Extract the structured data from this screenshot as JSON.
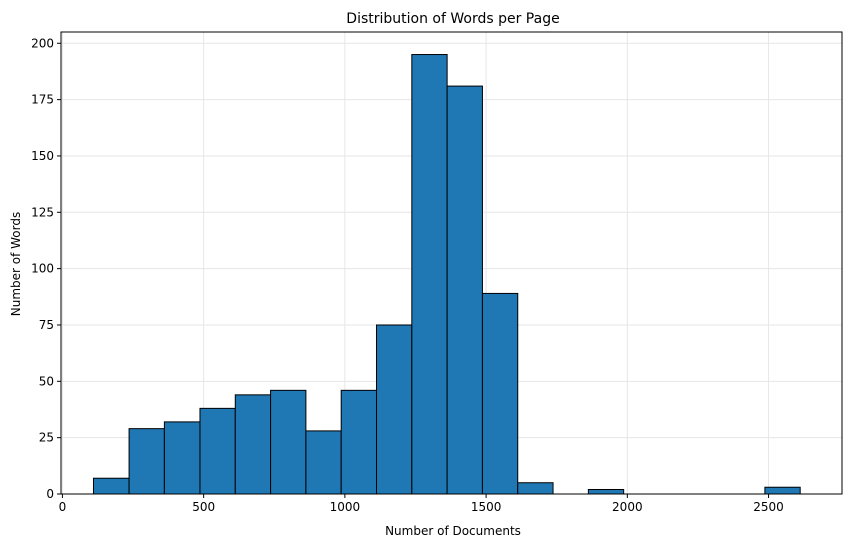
{
  "chart_data": {
    "type": "bar",
    "title": "Distribution of Words per Page",
    "xlabel": "Number of Documents",
    "ylabel": "Number of Words",
    "xlim": [
      -5,
      2760
    ],
    "ylim": [
      0,
      205
    ],
    "x_ticks": [
      0,
      500,
      1000,
      1500,
      2000,
      2500
    ],
    "y_ticks": [
      0,
      25,
      50,
      75,
      100,
      125,
      150,
      175,
      200
    ],
    "grid": true,
    "legend": "none",
    "colors": {
      "bar_fill": "#1f77b4",
      "bar_edge": "#000000",
      "grid": "#e6e6e6"
    },
    "bins": [
      {
        "x0": 110,
        "x1": 236,
        "value": 7
      },
      {
        "x0": 236,
        "x1": 361,
        "value": 29
      },
      {
        "x0": 361,
        "x1": 487,
        "value": 32
      },
      {
        "x0": 487,
        "x1": 612,
        "value": 38
      },
      {
        "x0": 612,
        "x1": 737,
        "value": 44
      },
      {
        "x0": 737,
        "x1": 862,
        "value": 46
      },
      {
        "x0": 862,
        "x1": 987,
        "value": 28
      },
      {
        "x0": 987,
        "x1": 1112,
        "value": 46
      },
      {
        "x0": 1112,
        "x1": 1237,
        "value": 75
      },
      {
        "x0": 1237,
        "x1": 1362,
        "value": 195
      },
      {
        "x0": 1362,
        "x1": 1487,
        "value": 181
      },
      {
        "x0": 1487,
        "x1": 1612,
        "value": 89
      },
      {
        "x0": 1612,
        "x1": 1737,
        "value": 5
      },
      {
        "x0": 1737,
        "x1": 1862,
        "value": 0
      },
      {
        "x0": 1862,
        "x1": 1987,
        "value": 2
      },
      {
        "x0": 1987,
        "x1": 2112,
        "value": 0
      },
      {
        "x0": 2112,
        "x1": 2237,
        "value": 0
      },
      {
        "x0": 2237,
        "x1": 2362,
        "value": 0
      },
      {
        "x0": 2362,
        "x1": 2487,
        "value": 0
      },
      {
        "x0": 2487,
        "x1": 2612,
        "value": 3
      }
    ]
  }
}
